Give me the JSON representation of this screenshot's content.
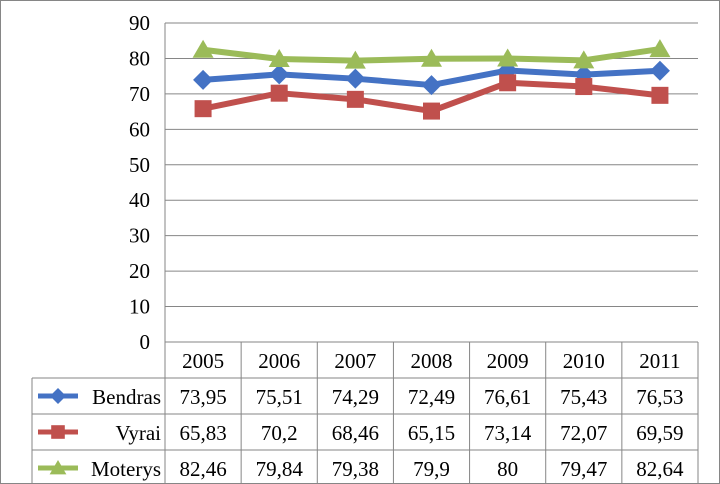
{
  "chart_data": {
    "type": "line",
    "categories": [
      "2005",
      "2006",
      "2007",
      "2008",
      "2009",
      "2010",
      "2011"
    ],
    "ylim": [
      0,
      90
    ],
    "yticks": [
      0,
      10,
      20,
      30,
      40,
      50,
      60,
      70,
      80,
      90
    ],
    "grid": true,
    "legend_placement": "data-table-left",
    "series": [
      {
        "name": "Bendras",
        "color": "#4472C4",
        "marker": "diamond",
        "values": [
          73.95,
          75.51,
          74.29,
          72.49,
          76.61,
          75.43,
          76.53
        ],
        "labels": [
          "73,95",
          "75,51",
          "74,29",
          "72,49",
          "76,61",
          "75,43",
          "76,53"
        ]
      },
      {
        "name": "Vyrai",
        "color": "#C0504D",
        "marker": "square",
        "values": [
          65.83,
          70.2,
          68.46,
          65.15,
          73.14,
          72.07,
          69.59
        ],
        "labels": [
          "65,83",
          "70,2",
          "68,46",
          "65,15",
          "73,14",
          "72,07",
          "69,59"
        ]
      },
      {
        "name": "Moterys",
        "color": "#9BBB59",
        "marker": "triangle",
        "values": [
          82.46,
          79.84,
          79.38,
          79.9,
          80,
          79.47,
          82.64
        ],
        "labels": [
          "82,46",
          "79,84",
          "79,38",
          "79,9",
          "80",
          "79,47",
          "82,64"
        ]
      }
    ]
  }
}
